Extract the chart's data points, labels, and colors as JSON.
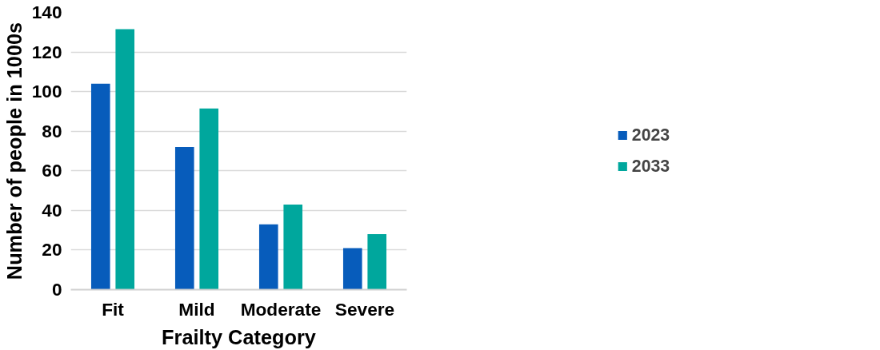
{
  "chart_data": {
    "type": "bar",
    "xlabel": "Frailty Category",
    "ylabel": "Number of people in 1000s",
    "categories": [
      "Fit",
      "Mild",
      "Moderate",
      "Severe"
    ],
    "series": [
      {
        "name": "2023",
        "color": "#075cbb",
        "values": [
          104,
          72,
          33,
          21
        ]
      },
      {
        "name": "2033",
        "color": "#00a79d",
        "values": [
          131.5,
          91.5,
          43,
          28
        ]
      }
    ],
    "ylim": [
      0,
      140
    ],
    "yticks": [
      0,
      20,
      40,
      60,
      80,
      100,
      120,
      140
    ],
    "grid": "y",
    "legend": "right"
  }
}
